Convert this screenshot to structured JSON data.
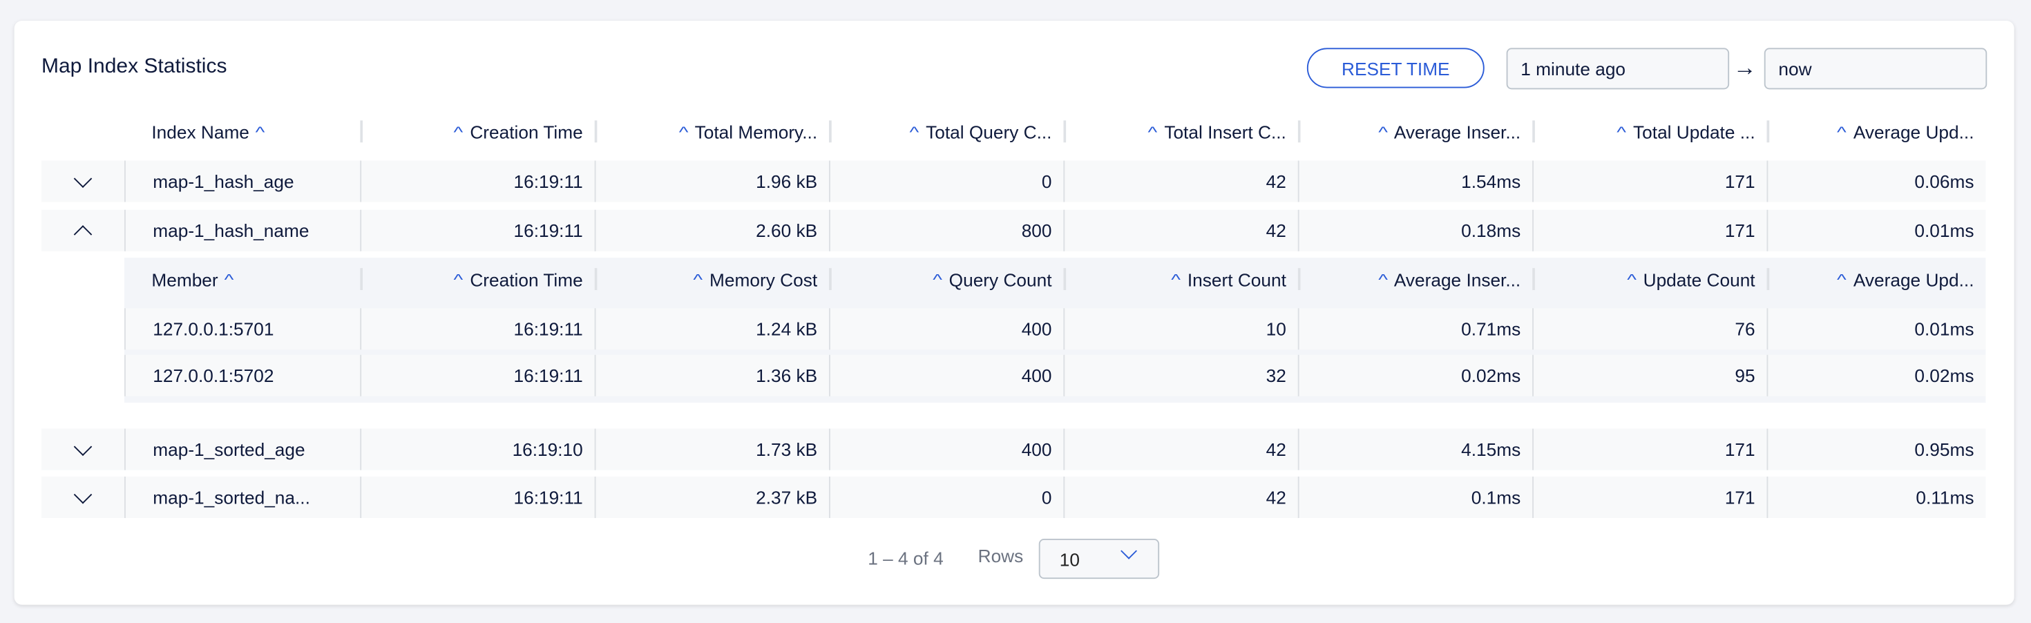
{
  "title": "Map Index Statistics",
  "toolbar": {
    "reset_label": "RESET TIME",
    "from_value": "1 minute ago",
    "to_value": "now",
    "arrow": "→"
  },
  "colors": {
    "accent": "#2a5bd7",
    "background": "#f3f4f8",
    "row": "#f8f9fa"
  },
  "table": {
    "headers": [
      "Index Name",
      "Creation Time",
      "Total Memory...",
      "Total Query C...",
      "Total Insert C...",
      "Average Inser...",
      "Total Update ...",
      "Average Upd..."
    ],
    "rows": [
      {
        "expanded": false,
        "cells": [
          "map-1_hash_age",
          "16:19:11",
          "1.96 kB",
          "0",
          "42",
          "1.54ms",
          "171",
          "0.06ms"
        ]
      },
      {
        "expanded": true,
        "cells": [
          "map-1_hash_name",
          "16:19:11",
          "2.60 kB",
          "800",
          "42",
          "0.18ms",
          "171",
          "0.01ms"
        ]
      },
      {
        "expanded": false,
        "cells": [
          "map-1_sorted_age",
          "16:19:10",
          "1.73 kB",
          "400",
          "42",
          "4.15ms",
          "171",
          "0.95ms"
        ]
      },
      {
        "expanded": false,
        "cells": [
          "map-1_sorted_na...",
          "16:19:11",
          "2.37 kB",
          "0",
          "42",
          "0.1ms",
          "171",
          "0.11ms"
        ]
      }
    ],
    "sub_headers": [
      "Member",
      "Creation Time",
      "Memory Cost",
      "Query Count",
      "Insert Count",
      "Average Inser...",
      "Update Count",
      "Average Upd..."
    ],
    "sub_rows": [
      [
        "127.0.0.1:5701",
        "16:19:11",
        "1.24 kB",
        "400",
        "10",
        "0.71ms",
        "76",
        "0.01ms"
      ],
      [
        "127.0.0.1:5702",
        "16:19:11",
        "1.36 kB",
        "400",
        "32",
        "0.02ms",
        "95",
        "0.02ms"
      ]
    ]
  },
  "pagination": {
    "range": "1 – 4 of 4",
    "rows_label": "Rows",
    "rows_value": "10"
  },
  "icons": {
    "sort": "sort-ascending-icon",
    "expand": "chevron-down-icon",
    "collapse": "chevron-up-icon"
  }
}
